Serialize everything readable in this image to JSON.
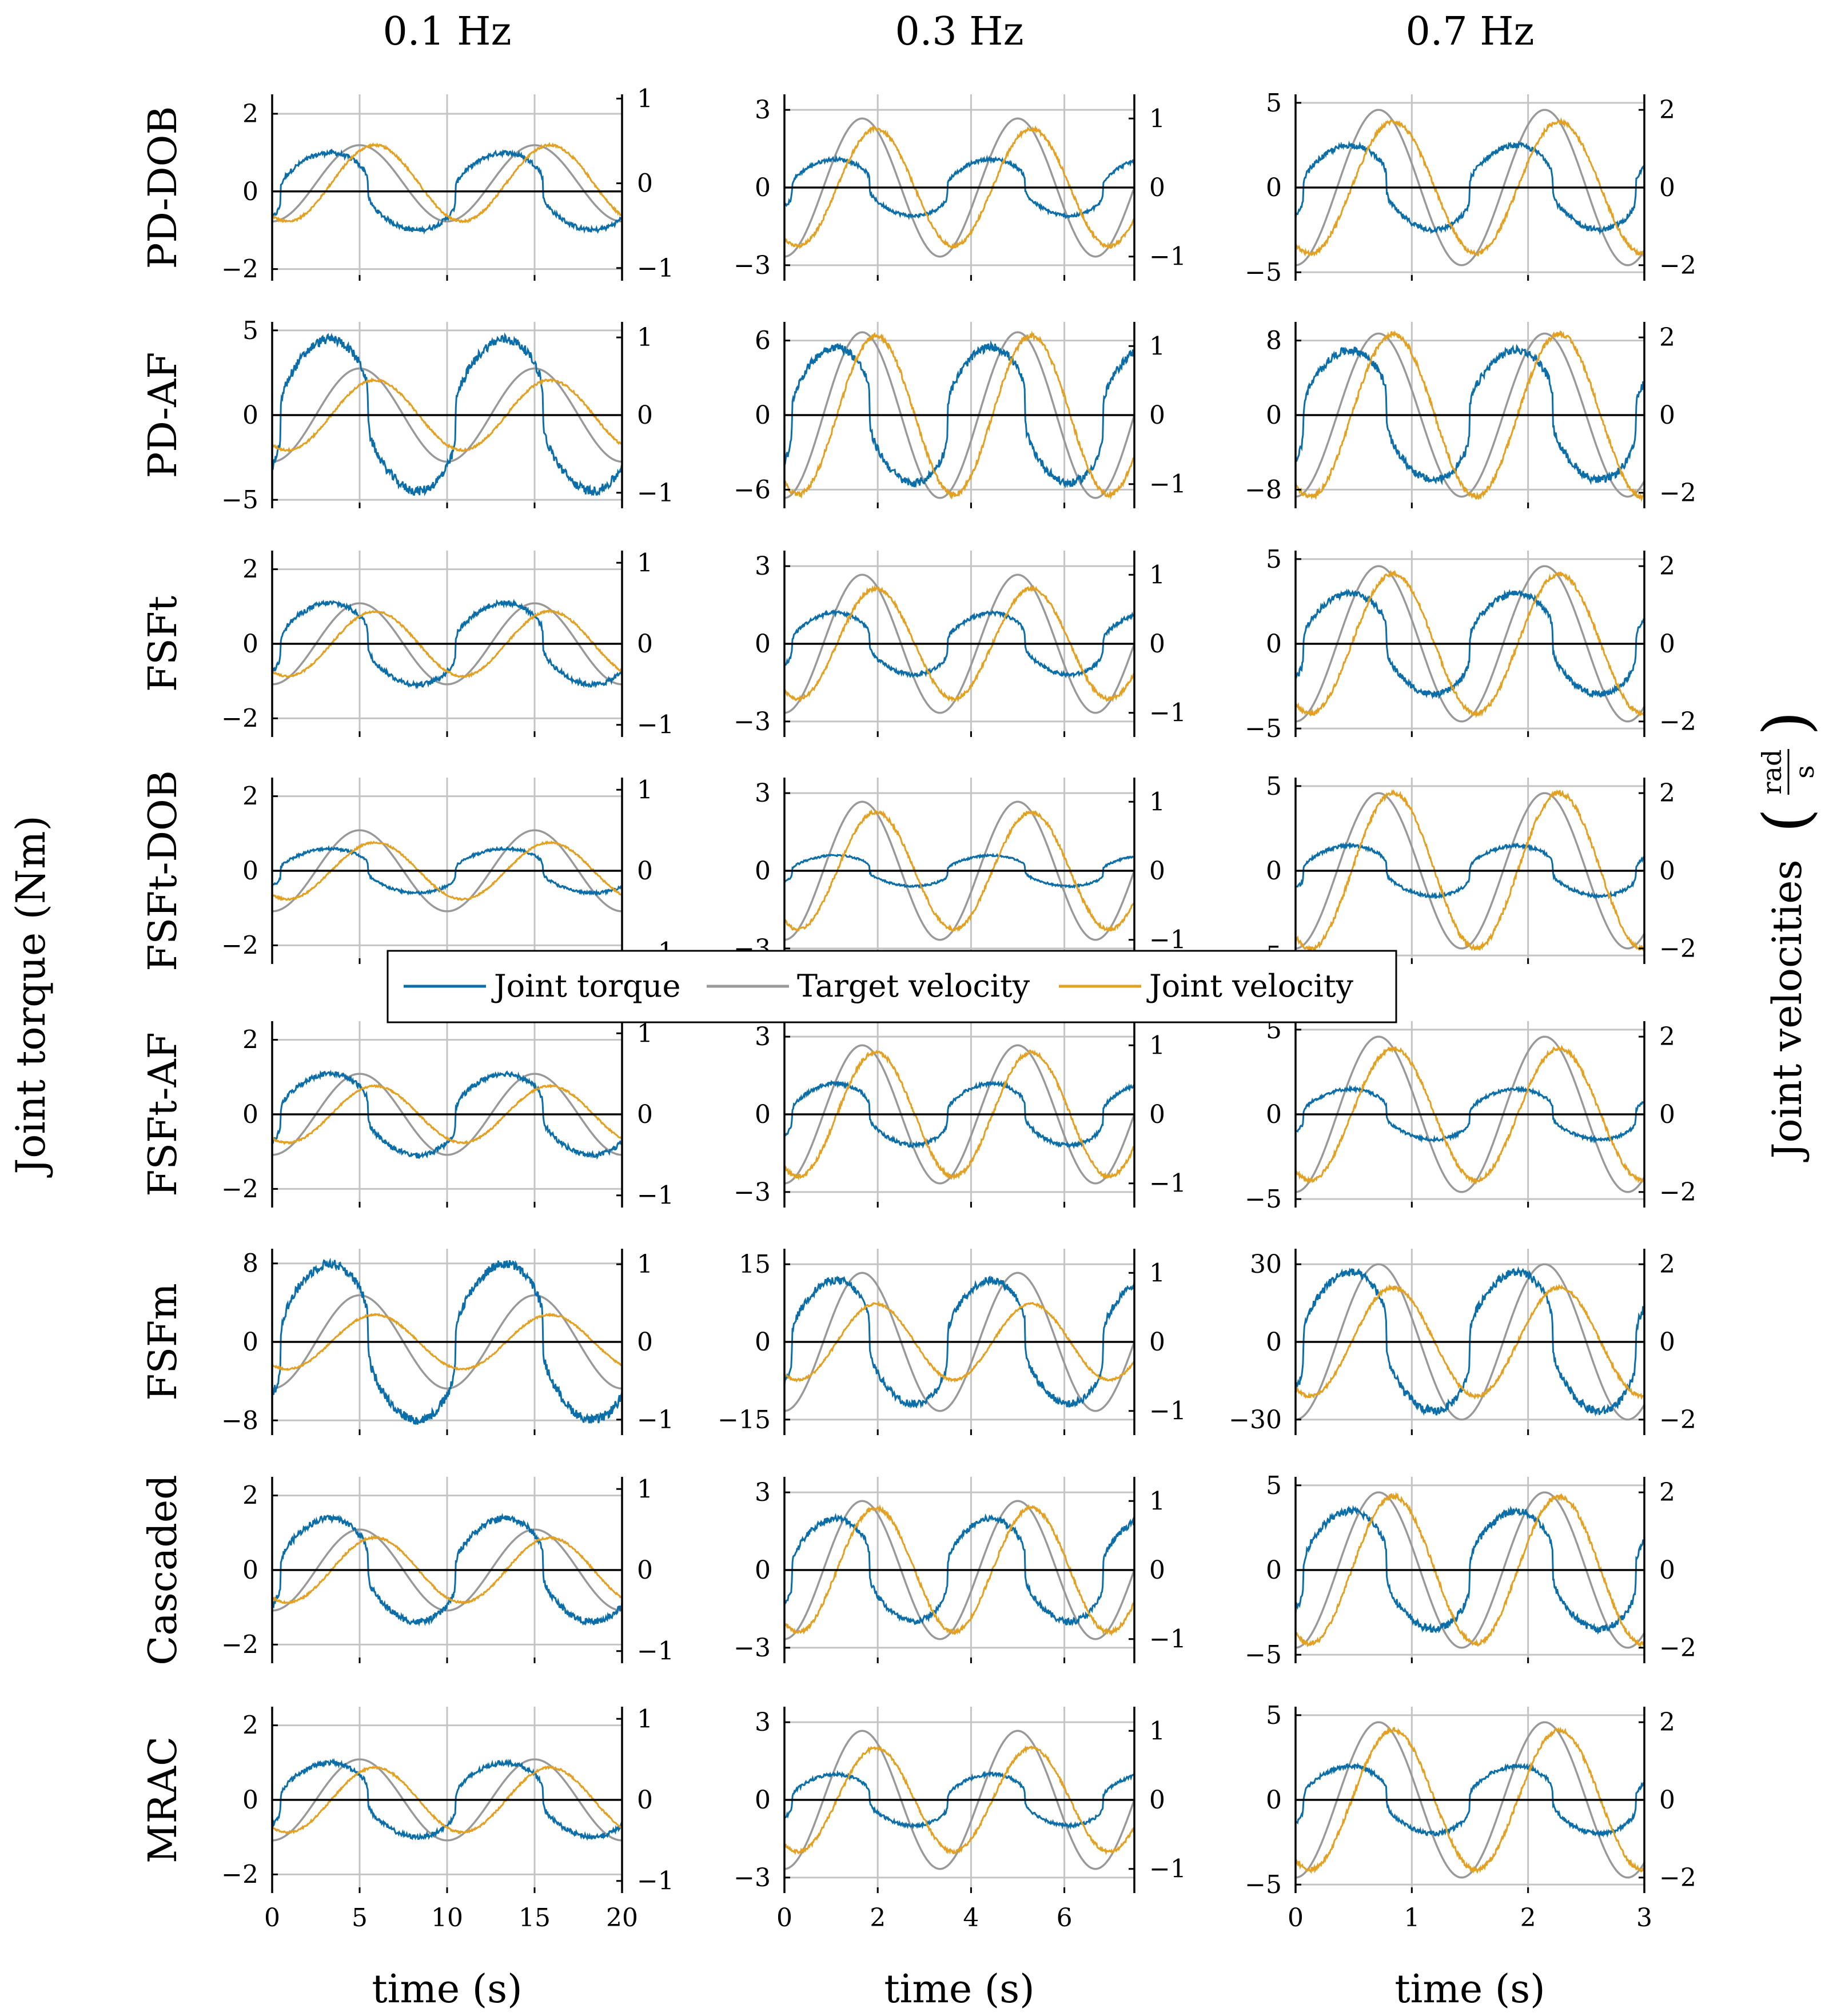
{
  "chart_data": {
    "type": "line",
    "ylabel_left": "Joint torque (Nm)",
    "ylabel_right": "Joint velocities",
    "ylabel_right_unit_num": "rad",
    "ylabel_right_unit_den": "s",
    "xlabel": "time (s)",
    "legend": {
      "placement": "center",
      "entries": [
        {
          "name": "Joint torque",
          "color": "#0b6ea8"
        },
        {
          "name": "Target velocity",
          "color": "#999999"
        },
        {
          "name": "Joint velocity",
          "color": "#e3a021"
        }
      ]
    },
    "grid": true,
    "columns": [
      {
        "title": "0.1 Hz",
        "freq": 0.1,
        "xlim": [
          0,
          20
        ],
        "xticks": [
          "0",
          "5",
          "10",
          "15",
          "20"
        ],
        "xtick_values": [
          0,
          5,
          10,
          15,
          20
        ]
      },
      {
        "title": "0.3 Hz",
        "freq": 0.3,
        "xlim": [
          0,
          7.5
        ],
        "xticks": [
          "0",
          "2",
          "4",
          "6"
        ],
        "xtick_values": [
          0,
          2,
          4,
          6
        ]
      },
      {
        "title": "0.7 Hz",
        "freq": 0.7,
        "xlim": [
          0,
          3
        ],
        "xticks": [
          "0",
          "1",
          "2",
          "3"
        ],
        "xtick_values": [
          0,
          1,
          2,
          3
        ]
      }
    ],
    "rows": [
      {
        "label": "PD-DOB",
        "panels": [
          {
            "tt": [
              -2.3,
              -2,
              0,
              2,
              2.5
            ],
            "tl": [
              "−2",
              "0",
              "2"
            ],
            "vt": [
              -1.15,
              -1,
              0,
              1,
              1.05
            ],
            "vl": [
              "−1",
              "0",
              "1"
            ],
            "tau": 1.0,
            "vel": 0.45,
            "tgt": 0.45
          },
          {
            "tt": [
              -3.6,
              -3,
              0,
              3,
              3.6
            ],
            "tl": [
              "−3",
              "0",
              "3"
            ],
            "vt": [
              -1.35,
              -1,
              0,
              1,
              1.35
            ],
            "vl": [
              "−1",
              "0",
              "1"
            ],
            "tau": 1.1,
            "vel": 0.85,
            "tgt": 1.0
          },
          {
            "tt": [
              -5.5,
              -5,
              0,
              5,
              5.5
            ],
            "tl": [
              "−5",
              "0",
              "5"
            ],
            "vt": [
              -2.4,
              -2,
              0,
              2,
              2.4
            ],
            "vl": [
              "−2",
              "0",
              "2"
            ],
            "tau": 2.5,
            "vel": 1.7,
            "tgt": 2.0
          }
        ]
      },
      {
        "label": "PD-AF",
        "panels": [
          {
            "tt": [
              -5.5,
              -5,
              0,
              5,
              5.5
            ],
            "tl": [
              "−5",
              "0",
              "5"
            ],
            "vt": [
              -1.2,
              -1,
              0,
              1,
              1.2
            ],
            "vl": [
              "−1",
              "0",
              "1"
            ],
            "tau": 4.5,
            "vel": 0.45,
            "tgt": 0.6
          },
          {
            "tt": [
              -7.5,
              -6,
              0,
              6,
              7.5
            ],
            "tl": [
              "−6",
              "0",
              "6"
            ],
            "vt": [
              -1.35,
              -1,
              0,
              1,
              1.35
            ],
            "vl": [
              "−1",
              "0",
              "1"
            ],
            "tau": 5.5,
            "vel": 1.15,
            "tgt": 1.2
          },
          {
            "tt": [
              -10,
              -8,
              0,
              8,
              10
            ],
            "tl": [
              "−8",
              "0",
              "8"
            ],
            "vt": [
              -2.4,
              -2,
              0,
              2,
              2.4
            ],
            "vl": [
              "−2",
              "0",
              "2"
            ],
            "tau": 7.0,
            "vel": 2.1,
            "tgt": 2.1
          }
        ]
      },
      {
        "label": "FSFt",
        "panels": [
          {
            "tt": [
              -2.5,
              -2,
              0,
              2,
              2.5
            ],
            "tl": [
              "−2",
              "0",
              "2"
            ],
            "vt": [
              -1.15,
              -1,
              0,
              1,
              1.15
            ],
            "vl": [
              "−1",
              "0",
              "1"
            ],
            "tau": 1.1,
            "vel": 0.4,
            "tgt": 0.5
          },
          {
            "tt": [
              -3.6,
              -3,
              0,
              3,
              3.6
            ],
            "tl": [
              "−3",
              "0",
              "3"
            ],
            "vt": [
              -1.35,
              -1,
              0,
              1,
              1.35
            ],
            "vl": [
              "−1",
              "0",
              "1"
            ],
            "tau": 1.2,
            "vel": 0.8,
            "tgt": 1.0
          },
          {
            "tt": [
              -5.5,
              -5,
              0,
              5,
              5.5
            ],
            "tl": [
              "−5",
              "0",
              "5"
            ],
            "vt": [
              -2.4,
              -2,
              0,
              2,
              2.4
            ],
            "vl": [
              "−2",
              "0",
              "2"
            ],
            "tau": 3.0,
            "vel": 1.8,
            "tgt": 2.0
          }
        ]
      },
      {
        "label": "FSFt-DOB",
        "panels": [
          {
            "tt": [
              -2.5,
              -2,
              0,
              2,
              2.5
            ],
            "tl": [
              "−2",
              "0",
              "2"
            ],
            "vt": [
              -1.15,
              -1,
              0,
              1,
              1.15
            ],
            "vl": [
              "−1",
              "0",
              "1"
            ],
            "tau": 0.6,
            "vel": 0.35,
            "tgt": 0.5
          },
          {
            "tt": [
              -3.6,
              -3,
              0,
              3,
              3.6
            ],
            "tl": [
              "−3",
              "0",
              "3"
            ],
            "vt": [
              -1.35,
              -1,
              0,
              1,
              1.35
            ],
            "vl": [
              "−1",
              "0",
              "1"
            ],
            "tau": 0.6,
            "vel": 0.85,
            "tgt": 1.0
          },
          {
            "tt": [
              -5.5,
              -5,
              0,
              5,
              5.5
            ],
            "tl": [
              "−5",
              "0",
              "5"
            ],
            "vt": [
              -2.4,
              -2,
              0,
              2,
              2.4
            ],
            "vl": [
              "−2",
              "0",
              "2"
            ],
            "tau": 1.5,
            "vel": 2.0,
            "tgt": 2.0
          }
        ]
      },
      {
        "label": "FSFt-AF",
        "panels": [
          {
            "tt": [
              -2.5,
              -2,
              0,
              2,
              2.5
            ],
            "tl": [
              "−2",
              "0",
              "2"
            ],
            "vt": [
              -1.15,
              -1,
              0,
              1,
              1.15
            ],
            "vl": [
              "−1",
              "0",
              "1"
            ],
            "tau": 1.1,
            "vel": 0.35,
            "tgt": 0.5
          },
          {
            "tt": [
              -3.6,
              -3,
              0,
              3,
              3.6
            ],
            "tl": [
              "−3",
              "0",
              "3"
            ],
            "vt": [
              -1.35,
              -1,
              0,
              1,
              1.35
            ],
            "vl": [
              "−1",
              "0",
              "1"
            ],
            "tau": 1.2,
            "vel": 0.9,
            "tgt": 1.0
          },
          {
            "tt": [
              -5.5,
              -5,
              0,
              5,
              5.5
            ],
            "tl": [
              "−5",
              "0",
              "5"
            ],
            "vt": [
              -2.4,
              -2,
              0,
              2,
              2.4
            ],
            "vl": [
              "−2",
              "0",
              "2"
            ],
            "tau": 1.5,
            "vel": 1.7,
            "tgt": 2.0
          }
        ]
      },
      {
        "label": "FSFm",
        "panels": [
          {
            "tt": [
              -9.5,
              -8,
              0,
              8,
              9.5
            ],
            "tl": [
              "−8",
              "0",
              "8"
            ],
            "vt": [
              -1.2,
              -1,
              0,
              1,
              1.2
            ],
            "vl": [
              "−1",
              "0",
              "1"
            ],
            "tau": 8.0,
            "vel": 0.35,
            "tgt": 0.6
          },
          {
            "tt": [
              -18,
              -15,
              0,
              15,
              18
            ],
            "tl": [
              "−15",
              "0",
              "15"
            ],
            "vt": [
              -1.35,
              -1,
              0,
              1,
              1.35
            ],
            "vl": [
              "−1",
              "0",
              "1"
            ],
            "tau": 12.0,
            "vel": 0.55,
            "tgt": 1.0
          },
          {
            "tt": [
              -36,
              -30,
              0,
              30,
              36
            ],
            "tl": [
              "−30",
              "0",
              "30"
            ],
            "vt": [
              -2.4,
              -2,
              0,
              2,
              2.4
            ],
            "vl": [
              "−2",
              "0",
              "2"
            ],
            "tau": 27.0,
            "vel": 1.4,
            "tgt": 2.0
          }
        ]
      },
      {
        "label": "Cascaded",
        "panels": [
          {
            "tt": [
              -2.5,
              -2,
              0,
              2,
              2.5
            ],
            "tl": [
              "−2",
              "0",
              "2"
            ],
            "vt": [
              -1.15,
              -1,
              0,
              1,
              1.15
            ],
            "vl": [
              "−1",
              "0",
              "1"
            ],
            "tau": 1.4,
            "vel": 0.4,
            "tgt": 0.5
          },
          {
            "tt": [
              -3.6,
              -3,
              0,
              3,
              3.6
            ],
            "tl": [
              "−3",
              "0",
              "3"
            ],
            "vt": [
              -1.35,
              -1,
              0,
              1,
              1.35
            ],
            "vl": [
              "−1",
              "0",
              "1"
            ],
            "tau": 2.0,
            "vel": 0.9,
            "tgt": 1.0
          },
          {
            "tt": [
              -5.5,
              -5,
              0,
              5,
              5.5
            ],
            "tl": [
              "−5",
              "0",
              "5"
            ],
            "vt": [
              -2.4,
              -2,
              0,
              2,
              2.4
            ],
            "vl": [
              "−2",
              "0",
              "2"
            ],
            "tau": 3.5,
            "vel": 1.9,
            "tgt": 2.0
          }
        ]
      },
      {
        "label": "MRAC",
        "panels": [
          {
            "tt": [
              -2.5,
              -2,
              0,
              2,
              2.5
            ],
            "tl": [
              "−2",
              "0",
              "2"
            ],
            "vt": [
              -1.15,
              -1,
              0,
              1,
              1.15
            ],
            "vl": [
              "−1",
              "0",
              "1"
            ],
            "tau": 1.0,
            "vel": 0.4,
            "tgt": 0.5
          },
          {
            "tt": [
              -3.6,
              -3,
              0,
              3,
              3.6
            ],
            "tl": [
              "−3",
              "0",
              "3"
            ],
            "vt": [
              -1.35,
              -1,
              0,
              1,
              1.35
            ],
            "vl": [
              "−1",
              "0",
              "1"
            ],
            "tau": 1.0,
            "vel": 0.75,
            "tgt": 1.0
          },
          {
            "tt": [
              -5.5,
              -5,
              0,
              5,
              5.5
            ],
            "tl": [
              "−5",
              "0",
              "5"
            ],
            "vt": [
              -2.4,
              -2,
              0,
              2,
              2.4
            ],
            "vl": [
              "−2",
              "0",
              "2"
            ],
            "tau": 2.0,
            "vel": 1.8,
            "tgt": 2.0
          }
        ]
      }
    ]
  }
}
